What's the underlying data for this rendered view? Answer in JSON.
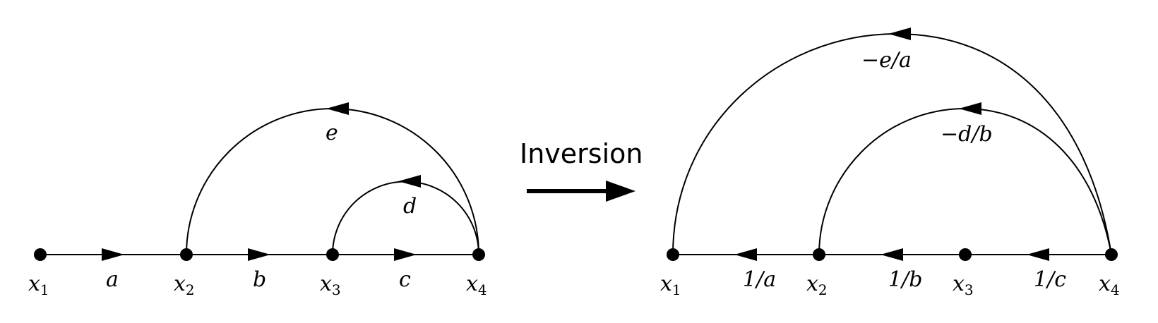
{
  "transform_label": "Inversion",
  "left_graph": {
    "nodes": [
      {
        "name": "x",
        "sub": "1"
      },
      {
        "name": "x",
        "sub": "2"
      },
      {
        "name": "x",
        "sub": "3"
      },
      {
        "name": "x",
        "sub": "4"
      }
    ],
    "edge_labels": {
      "x1_x2": "a",
      "x2_x3": "b",
      "x3_x4": "c",
      "x4_x2": "e",
      "x4_x3": "d"
    }
  },
  "right_graph": {
    "nodes": [
      {
        "name": "x",
        "sub": "1"
      },
      {
        "name": "x",
        "sub": "2"
      },
      {
        "name": "x",
        "sub": "3"
      },
      {
        "name": "x",
        "sub": "4"
      }
    ],
    "edge_labels": {
      "x2_x1": "1/a",
      "x3_x2": "1/b",
      "x4_x3": "1/c",
      "x4_x1": "−e/a",
      "x4_x2": "−d/b"
    }
  }
}
